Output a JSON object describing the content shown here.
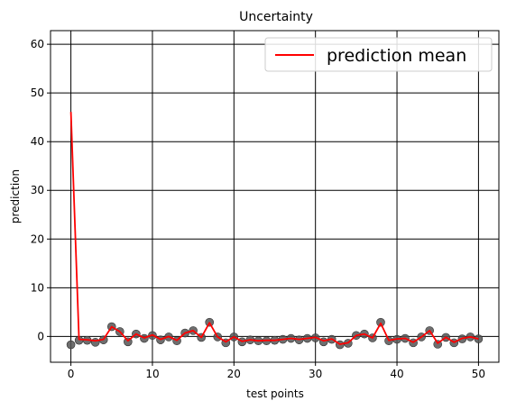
{
  "chart_data": {
    "type": "line",
    "title": "Uncertainty",
    "xlabel": "test points",
    "ylabel": "prediction",
    "xlim": [
      -2.5,
      52.5
    ],
    "ylim": [
      -5.3,
      62.8
    ],
    "xticks": [
      0,
      10,
      20,
      30,
      40,
      50
    ],
    "yticks": [
      0,
      10,
      20,
      30,
      40,
      50,
      60
    ],
    "grid": true,
    "legend": {
      "position": "top-right",
      "entries": [
        "prediction mean"
      ]
    },
    "colors": {
      "mean_line": "#ff0000",
      "scatter": "#555555",
      "grid": "#000000"
    },
    "x": [
      0,
      1,
      2,
      3,
      4,
      5,
      6,
      7,
      8,
      9,
      10,
      11,
      12,
      13,
      14,
      15,
      16,
      17,
      18,
      19,
      20,
      21,
      22,
      23,
      24,
      25,
      26,
      27,
      28,
      29,
      30,
      31,
      32,
      33,
      34,
      35,
      36,
      37,
      38,
      39,
      40,
      41,
      42,
      43,
      44,
      45,
      46,
      47,
      48,
      49,
      50
    ],
    "series": [
      {
        "name": "prediction mean",
        "kind": "line",
        "values": [
          46.1,
          -0.6,
          -0.7,
          -0.9,
          -0.6,
          2.0,
          1.0,
          -0.9,
          0.5,
          -0.3,
          0.3,
          -0.6,
          0.0,
          -0.8,
          0.7,
          1.2,
          -0.2,
          2.8,
          -0.1,
          -1.1,
          -0.1,
          -1.0,
          -0.7,
          -0.9,
          -0.8,
          -0.8,
          -0.6,
          -0.4,
          -0.6,
          -0.4,
          -0.2,
          -0.9,
          -0.5,
          -1.6,
          -1.3,
          0.2,
          0.5,
          -0.3,
          2.7,
          -0.8,
          -0.5,
          -0.4,
          -1.2,
          -0.1,
          1.2,
          -1.4,
          -0.2,
          -1.2,
          -0.4,
          -0.1,
          -0.5
        ]
      },
      {
        "kind": "scatter",
        "values": [
          -1.7,
          -0.8,
          -0.8,
          -1.2,
          -0.7,
          2.0,
          1.0,
          -1.1,
          0.5,
          -0.4,
          0.2,
          -0.7,
          -0.1,
          -0.9,
          0.7,
          1.2,
          -0.2,
          2.9,
          -0.1,
          -1.3,
          -0.1,
          -1.1,
          -0.7,
          -0.9,
          -0.9,
          -0.8,
          -0.6,
          -0.4,
          -0.7,
          -0.4,
          -0.3,
          -1.1,
          -0.6,
          -1.7,
          -1.4,
          0.2,
          0.5,
          -0.3,
          2.9,
          -0.9,
          -0.6,
          -0.4,
          -1.3,
          -0.1,
          1.2,
          -1.6,
          -0.2,
          -1.3,
          -0.5,
          -0.1,
          -0.5
        ]
      }
    ]
  }
}
